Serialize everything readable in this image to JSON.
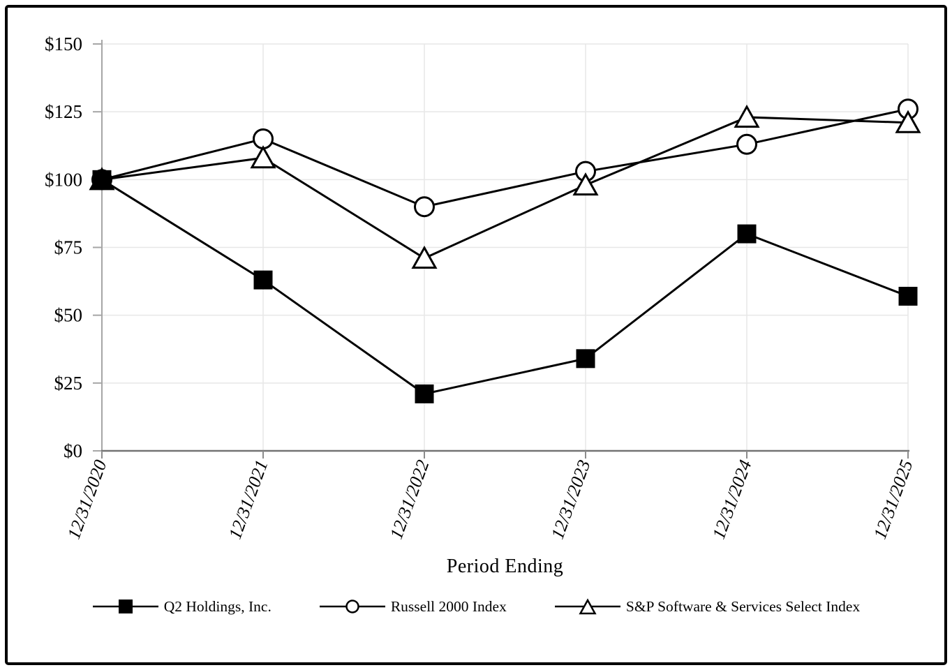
{
  "page": {
    "background_color": "#ffffff",
    "frame_color": "#000000"
  },
  "chart_data": {
    "type": "line",
    "title": "",
    "xlabel": "Period Ending",
    "ylabel": "",
    "categories": [
      "12/31/2020",
      "12/31/2021",
      "12/31/2022",
      "12/31/2023",
      "12/31/2024",
      "12/31/2025"
    ],
    "series": [
      {
        "name": "Q2 Holdings, Inc.",
        "marker": "square",
        "values": [
          100,
          63,
          21,
          34,
          80,
          57
        ]
      },
      {
        "name": "Russell 2000 Index",
        "marker": "circle",
        "values": [
          100,
          115,
          90,
          103,
          113,
          126
        ]
      },
      {
        "name": "S&P Software & Services Select Index",
        "marker": "triangle",
        "values": [
          100,
          108,
          71,
          98,
          123,
          121
        ]
      }
    ],
    "ylim": [
      0,
      150
    ],
    "y_tick_step": 25,
    "y_tick_labels": [
      "$0",
      "$25",
      "$50",
      "$75",
      "$100",
      "$125",
      "$150"
    ],
    "grid": true,
    "legend_position": "bottom",
    "colors": {
      "line": "#000000",
      "marker_fill_open": "#ffffff",
      "gridline": "#e7e7e7",
      "y_axis": "#a6a6a6",
      "x_axis": "#737373",
      "tick": "#8c8c8c",
      "text": "#000000"
    }
  }
}
